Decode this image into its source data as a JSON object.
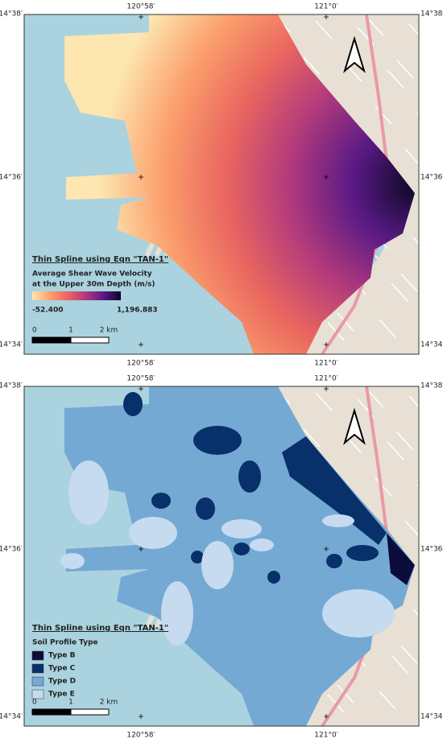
{
  "panels": [
    {
      "coordinates": {
        "top": [
          "120°58′",
          "121°0′"
        ],
        "bottom": [
          "120°58′",
          "121°0′"
        ],
        "left": [
          "14°38′",
          "14°36′",
          "14°34′"
        ],
        "right": [
          "14°38′",
          "14°36′",
          "14°34′"
        ]
      },
      "legend": {
        "title": "Thin Spline using Eqn \"TAN-1\"",
        "subtitle": [
          "Average Shear Wave Velocity",
          "at the Upper 30m Depth (m/s)"
        ],
        "min_label": "-52.400",
        "max_label": "1,196.883",
        "colors": [
          "#fde6b0",
          "#fb9f6c",
          "#e9665f",
          "#b23a7c",
          "#5a1a85",
          "#0c0725"
        ]
      },
      "scale_bar": [
        "0",
        "1",
        "2 km"
      ]
    },
    {
      "coordinates": {
        "top": [
          "120°58′",
          "121°0′"
        ],
        "bottom": [
          "120°58′",
          "121°0′"
        ],
        "left": [
          "14°38′",
          "14°36′",
          "14°34′"
        ],
        "right": [
          "14°38′",
          "14°36′",
          "14°34′"
        ]
      },
      "legend": {
        "title": "Thin Spline using Eqn \"TAN-1\"",
        "subtitle": [
          "Soil Profile Type"
        ],
        "items": [
          {
            "label": "Type B",
            "color": "#0b0c3a"
          },
          {
            "label": "Type C",
            "color": "#08306b"
          },
          {
            "label": "Type D",
            "color": "#74a9d4"
          },
          {
            "label": "Type E",
            "color": "#c6dbef"
          }
        ]
      },
      "scale_bar": [
        "0",
        "1",
        "2 km"
      ]
    }
  ]
}
